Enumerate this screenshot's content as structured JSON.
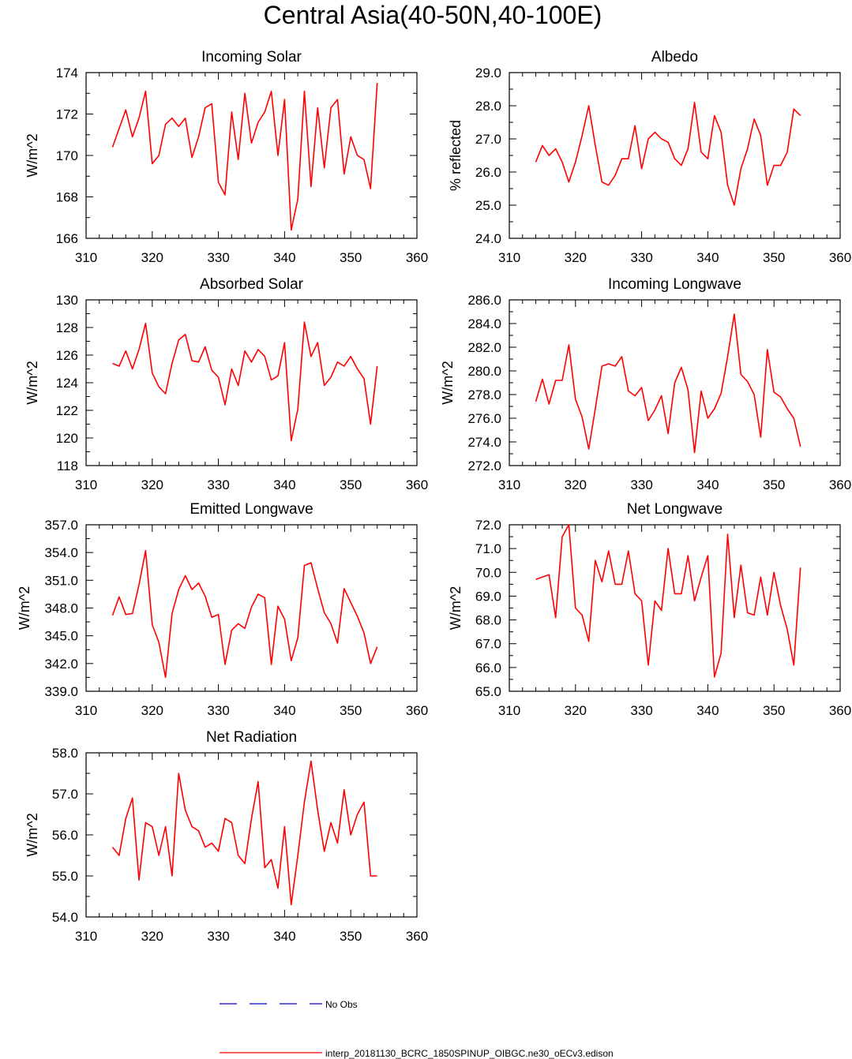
{
  "main_title": "Central Asia(40-50N,40-100E)",
  "colors": {
    "model": "#ff0000",
    "obs": "#0000cc",
    "axis": "#000000"
  },
  "legend": {
    "obs_label": "No Obs",
    "model_label": "interp_20181130_BCRC_1850SPINUP_OIBGC.ne30_oECv3.edison"
  },
  "chart_data": [
    {
      "type": "line",
      "title": "Incoming Solar",
      "ylabel": "W/m^2",
      "xlim": [
        310,
        360
      ],
      "ylim": [
        166,
        174
      ],
      "xticks": [
        310,
        320,
        330,
        340,
        350,
        360
      ],
      "yticks": [
        166,
        168,
        170,
        172,
        174
      ],
      "ytick_decimals": 0,
      "x": [
        314,
        315,
        316,
        317,
        318,
        319,
        320,
        321,
        322,
        323,
        324,
        325,
        326,
        327,
        328,
        329,
        330,
        331,
        332,
        333,
        334,
        335,
        336,
        337,
        338,
        339,
        340,
        341,
        342,
        343,
        344,
        345,
        346,
        347,
        348,
        349,
        350,
        351,
        352,
        353,
        354
      ],
      "values": [
        170.4,
        171.3,
        172.2,
        170.9,
        171.8,
        173.1,
        169.6,
        170.0,
        171.5,
        171.8,
        171.4,
        171.8,
        169.9,
        170.9,
        172.3,
        172.5,
        168.7,
        168.1,
        172.1,
        169.8,
        173.0,
        170.6,
        171.6,
        172.1,
        173.1,
        170.0,
        172.7,
        166.4,
        167.9,
        173.1,
        168.5,
        172.3,
        169.4,
        172.3,
        172.7,
        169.1,
        170.9,
        170.0,
        169.8,
        168.4,
        173.5
      ]
    },
    {
      "type": "line",
      "title": "Albedo",
      "ylabel": "% reflected",
      "xlim": [
        310,
        360
      ],
      "ylim": [
        24.0,
        29.0
      ],
      "xticks": [
        310,
        320,
        330,
        340,
        350,
        360
      ],
      "yticks": [
        24.0,
        25.0,
        26.0,
        27.0,
        28.0,
        29.0
      ],
      "ytick_decimals": 1,
      "x": [
        314,
        315,
        316,
        317,
        318,
        319,
        320,
        321,
        322,
        323,
        324,
        325,
        326,
        327,
        328,
        329,
        330,
        331,
        332,
        333,
        334,
        335,
        336,
        337,
        338,
        339,
        340,
        341,
        342,
        343,
        344,
        345,
        346,
        347,
        348,
        349,
        350,
        351,
        352,
        353,
        354
      ],
      "values": [
        26.3,
        26.8,
        26.5,
        26.7,
        26.3,
        25.7,
        26.3,
        27.1,
        28.0,
        26.8,
        25.7,
        25.6,
        25.9,
        26.4,
        26.4,
        27.4,
        26.1,
        27.0,
        27.2,
        27.0,
        26.9,
        26.4,
        26.2,
        26.7,
        28.1,
        26.6,
        26.4,
        27.7,
        27.2,
        25.6,
        25.0,
        26.1,
        26.7,
        27.6,
        27.1,
        25.6,
        26.2,
        26.2,
        26.6,
        27.9,
        27.7
      ]
    },
    {
      "type": "line",
      "title": "Absorbed Solar",
      "ylabel": "W/m^2",
      "xlim": [
        310,
        360
      ],
      "ylim": [
        118,
        130
      ],
      "xticks": [
        310,
        320,
        330,
        340,
        350,
        360
      ],
      "yticks": [
        118,
        120,
        122,
        124,
        126,
        128,
        130
      ],
      "ytick_decimals": 0,
      "x": [
        314,
        315,
        316,
        317,
        318,
        319,
        320,
        321,
        322,
        323,
        324,
        325,
        326,
        327,
        328,
        329,
        330,
        331,
        332,
        333,
        334,
        335,
        336,
        337,
        338,
        339,
        340,
        341,
        342,
        343,
        344,
        345,
        346,
        347,
        348,
        349,
        350,
        351,
        352,
        353,
        354
      ],
      "values": [
        125.4,
        125.2,
        126.3,
        125.0,
        126.4,
        128.3,
        124.7,
        123.7,
        123.2,
        125.4,
        127.1,
        127.5,
        125.6,
        125.5,
        126.6,
        124.9,
        124.4,
        122.4,
        125.0,
        123.8,
        126.3,
        125.5,
        126.4,
        125.9,
        124.2,
        124.5,
        126.9,
        119.8,
        122.1,
        128.4,
        125.9,
        126.9,
        123.8,
        124.4,
        125.5,
        125.2,
        125.9,
        125.0,
        124.3,
        121.0,
        125.2
      ]
    },
    {
      "type": "line",
      "title": "Incoming Longwave",
      "ylabel": "W/m^2",
      "xlim": [
        310,
        360
      ],
      "ylim": [
        272.0,
        286.0
      ],
      "xticks": [
        310,
        320,
        330,
        340,
        350,
        360
      ],
      "yticks": [
        272.0,
        274.0,
        276.0,
        278.0,
        280.0,
        282.0,
        284.0,
        286.0
      ],
      "ytick_decimals": 1,
      "x": [
        314,
        315,
        316,
        317,
        318,
        319,
        320,
        321,
        322,
        323,
        324,
        325,
        326,
        327,
        328,
        329,
        330,
        331,
        332,
        333,
        334,
        335,
        336,
        337,
        338,
        339,
        340,
        341,
        342,
        343,
        344,
        345,
        346,
        347,
        348,
        349,
        350,
        351,
        352,
        353,
        354
      ],
      "values": [
        277.4,
        279.3,
        277.2,
        279.2,
        279.2,
        282.2,
        277.6,
        276.1,
        273.4,
        276.8,
        280.4,
        280.6,
        280.4,
        281.2,
        278.3,
        277.9,
        278.6,
        275.8,
        276.7,
        277.9,
        274.7,
        279.0,
        280.3,
        278.4,
        273.1,
        278.3,
        276.0,
        276.8,
        278.1,
        281.2,
        284.8,
        279.7,
        279.1,
        278.0,
        274.4,
        281.8,
        278.2,
        277.8,
        276.8,
        276.0,
        273.6
      ]
    },
    {
      "type": "line",
      "title": "Emitted Longwave",
      "ylabel": "W/m^2",
      "xlim": [
        310,
        360
      ],
      "ylim": [
        339.0,
        357.0
      ],
      "xticks": [
        310,
        320,
        330,
        340,
        350,
        360
      ],
      "yticks": [
        339.0,
        342.0,
        345.0,
        348.0,
        351.0,
        354.0,
        357.0
      ],
      "ytick_decimals": 1,
      "x": [
        314,
        315,
        316,
        317,
        318,
        319,
        320,
        321,
        322,
        323,
        324,
        325,
        326,
        327,
        328,
        329,
        330,
        331,
        332,
        333,
        334,
        335,
        336,
        337,
        338,
        339,
        340,
        341,
        342,
        343,
        344,
        345,
        346,
        347,
        348,
        349,
        350,
        351,
        352,
        353,
        354
      ],
      "values": [
        347.2,
        349.2,
        347.3,
        347.4,
        350.5,
        354.2,
        346.2,
        344.3,
        340.5,
        347.4,
        350.0,
        351.5,
        350.0,
        350.7,
        349.3,
        347.0,
        347.3,
        341.9,
        345.6,
        346.3,
        345.8,
        348.1,
        349.5,
        349.1,
        341.9,
        348.2,
        346.8,
        342.3,
        344.8,
        352.6,
        352.9,
        350.1,
        347.5,
        346.3,
        344.2,
        350.1,
        348.6,
        347.1,
        345.3,
        342.0,
        343.8
      ]
    },
    {
      "type": "line",
      "title": "Net Longwave",
      "ylabel": "W/m^2",
      "xlim": [
        310,
        360
      ],
      "ylim": [
        65.0,
        72.0
      ],
      "xticks": [
        310,
        320,
        330,
        340,
        350,
        360
      ],
      "yticks": [
        65.0,
        66.0,
        67.0,
        68.0,
        69.0,
        70.0,
        71.0,
        72.0
      ],
      "ytick_decimals": 1,
      "x": [
        314,
        315,
        316,
        317,
        318,
        319,
        320,
        321,
        322,
        323,
        324,
        325,
        326,
        327,
        328,
        329,
        330,
        331,
        332,
        333,
        334,
        335,
        336,
        337,
        338,
        339,
        340,
        341,
        342,
        343,
        344,
        345,
        346,
        347,
        348,
        349,
        350,
        351,
        352,
        353,
        354
      ],
      "values": [
        69.7,
        69.8,
        69.9,
        68.1,
        71.5,
        72.0,
        68.5,
        68.2,
        67.1,
        70.5,
        69.6,
        70.9,
        69.5,
        69.5,
        70.9,
        69.1,
        68.8,
        66.1,
        68.8,
        68.4,
        71.0,
        69.1,
        69.1,
        70.7,
        68.8,
        69.8,
        70.7,
        65.6,
        66.6,
        71.6,
        68.1,
        70.3,
        68.3,
        68.2,
        69.8,
        68.2,
        70.0,
        68.6,
        67.6,
        66.1,
        70.2
      ]
    },
    {
      "type": "line",
      "title": "Net Radiation",
      "ylabel": "W/m^2",
      "xlim": [
        310,
        360
      ],
      "ylim": [
        54.0,
        58.0
      ],
      "xticks": [
        310,
        320,
        330,
        340,
        350,
        360
      ],
      "yticks": [
        54.0,
        55.0,
        56.0,
        57.0,
        58.0
      ],
      "ytick_decimals": 1,
      "x": [
        314,
        315,
        316,
        317,
        318,
        319,
        320,
        321,
        322,
        323,
        324,
        325,
        326,
        327,
        328,
        329,
        330,
        331,
        332,
        333,
        334,
        335,
        336,
        337,
        338,
        339,
        340,
        341,
        342,
        343,
        344,
        345,
        346,
        347,
        348,
        349,
        350,
        351,
        352,
        353,
        354
      ],
      "values": [
        55.7,
        55.5,
        56.4,
        56.9,
        54.9,
        56.3,
        56.2,
        55.5,
        56.2,
        55.0,
        57.5,
        56.6,
        56.2,
        56.1,
        55.7,
        55.8,
        55.6,
        56.4,
        56.3,
        55.5,
        55.3,
        56.4,
        57.3,
        55.2,
        55.4,
        54.7,
        56.2,
        54.3,
        55.5,
        56.8,
        57.8,
        56.6,
        55.6,
        56.3,
        55.8,
        57.1,
        56.0,
        56.5,
        56.8,
        55.0,
        55.0
      ]
    }
  ]
}
